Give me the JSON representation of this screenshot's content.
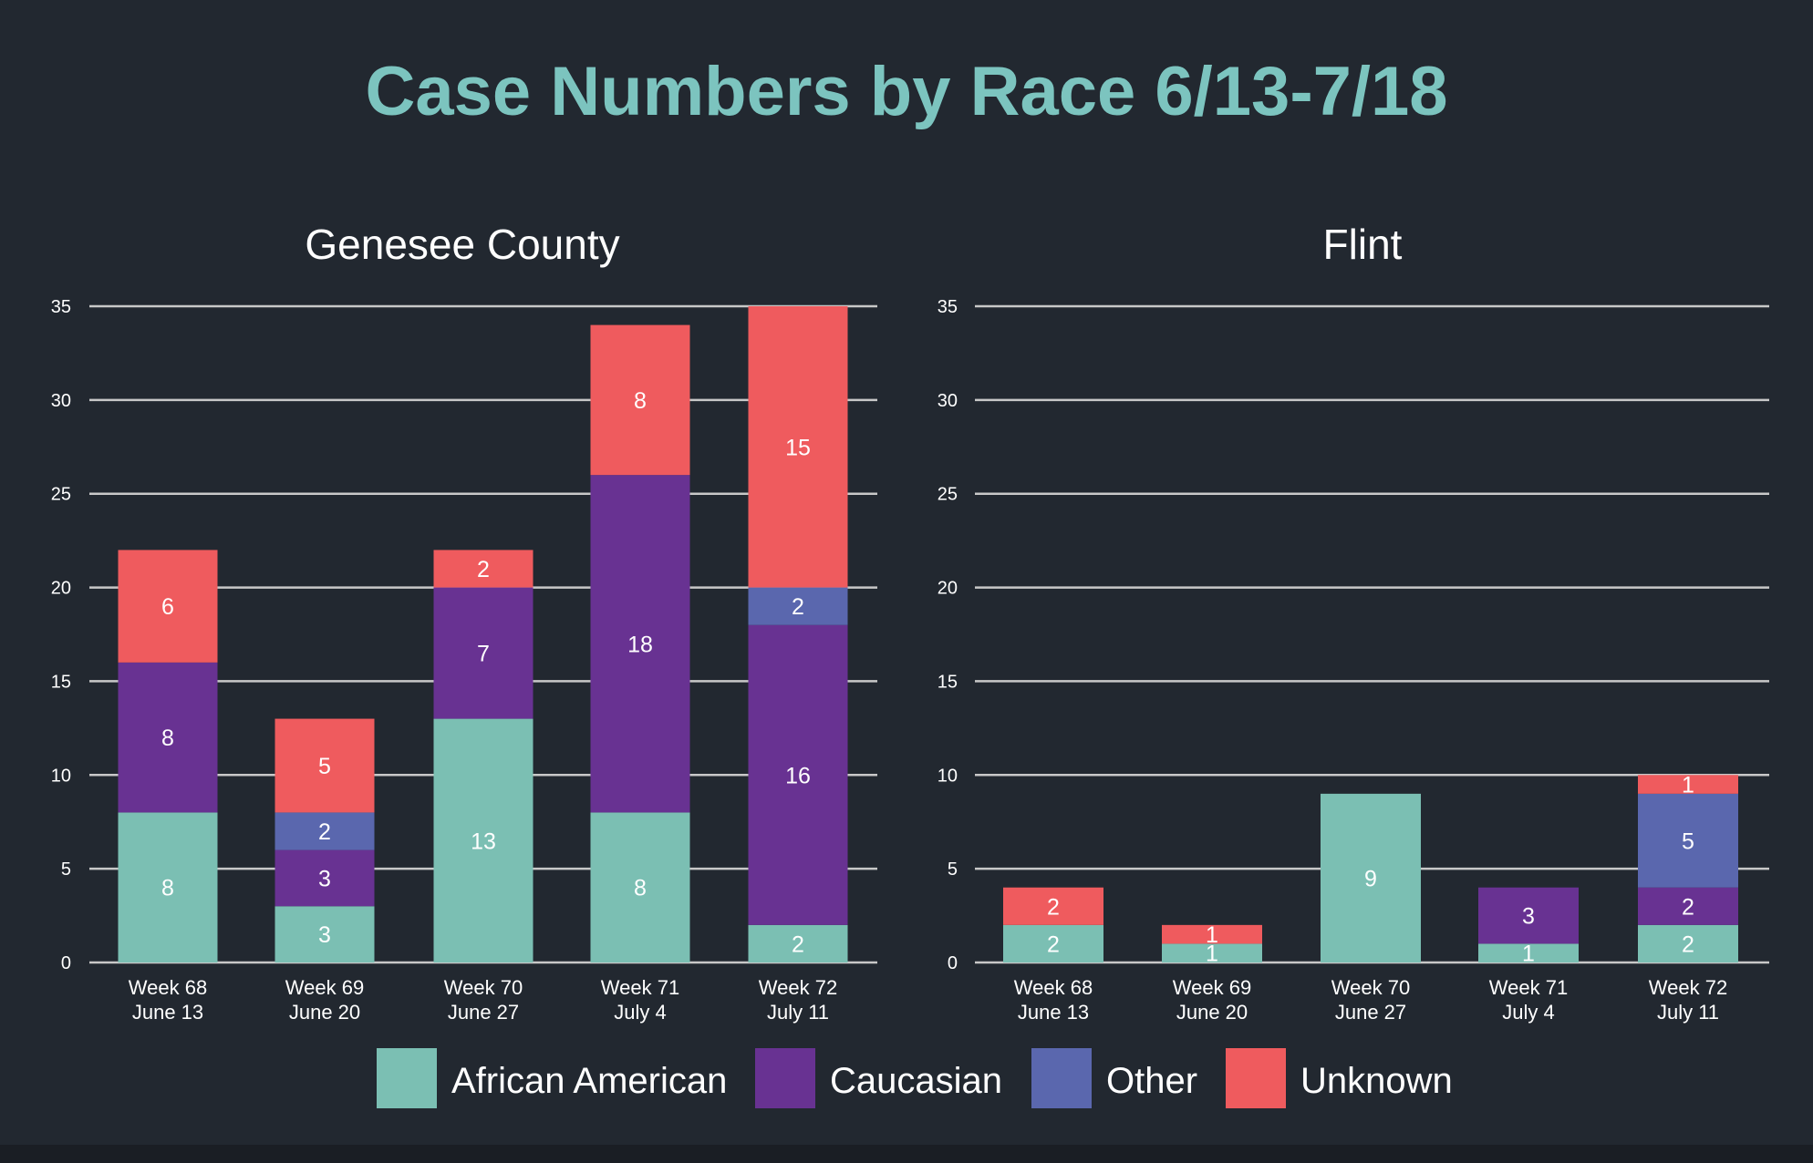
{
  "title": "Case Numbers by Race 6/13-7/18",
  "colors": {
    "background": "#222830",
    "title": "#7cc4bf",
    "African American": "#7bbfb3",
    "Caucasian": "#683292",
    "Other": "#5a67ae",
    "Unknown": "#ef5b5e",
    "gridline": "#c8c8c8",
    "text": "#ffffff"
  },
  "legend": {
    "placement": "bottom",
    "items": [
      "African American",
      "Caucasian",
      "Other",
      "Unknown"
    ]
  },
  "chart_data": [
    {
      "type": "bar",
      "stacked": true,
      "title": "Genesee County",
      "categories": [
        "Week 68\nJune 13",
        "Week 69\nJune 20",
        "Week 70\nJune 27",
        "Week 71\nJuly 4",
        "Week 72\nJuly 11"
      ],
      "ylim": [
        0,
        35
      ],
      "yticks": [
        0,
        5,
        10,
        15,
        20,
        25,
        30,
        35
      ],
      "grid": true,
      "series": [
        {
          "name": "African American",
          "values": [
            8,
            3,
            13,
            8,
            2
          ]
        },
        {
          "name": "Caucasian",
          "values": [
            8,
            3,
            7,
            18,
            16
          ]
        },
        {
          "name": "Other",
          "values": [
            0,
            2,
            0,
            0,
            2
          ]
        },
        {
          "name": "Unknown",
          "values": [
            6,
            5,
            2,
            8,
            15
          ]
        }
      ]
    },
    {
      "type": "bar",
      "stacked": true,
      "title": "Flint",
      "categories": [
        "Week 68\nJune 13",
        "Week 69\nJune 20",
        "Week 70\nJune 27",
        "Week 71\nJuly 4",
        "Week 72\nJuly 11"
      ],
      "ylim": [
        0,
        35
      ],
      "yticks": [
        0,
        5,
        10,
        15,
        20,
        25,
        30,
        35
      ],
      "grid": true,
      "series": [
        {
          "name": "African American",
          "values": [
            2,
            1,
            9,
            1,
            2
          ]
        },
        {
          "name": "Caucasian",
          "values": [
            0,
            0,
            0,
            3,
            2
          ]
        },
        {
          "name": "Other",
          "values": [
            0,
            0,
            0,
            0,
            5
          ]
        },
        {
          "name": "Unknown",
          "values": [
            2,
            1,
            0,
            0,
            1
          ]
        }
      ]
    }
  ]
}
